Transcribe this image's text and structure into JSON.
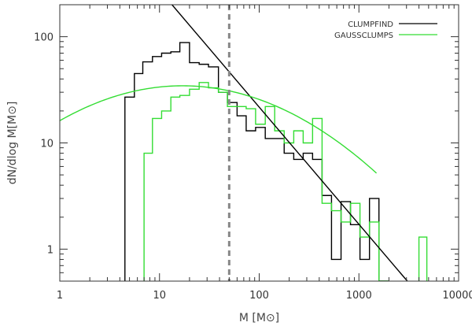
{
  "chart_data": {
    "type": "line",
    "xlabel": "M [M⊙]",
    "ylabel": "dN/dlog M[M⊙]",
    "xscale": "log",
    "yscale": "log",
    "xlim": [
      1,
      10000
    ],
    "ylim": [
      0.5,
      200
    ],
    "x_ticks": [
      1,
      10,
      100,
      1000,
      10000
    ],
    "x_tick_labels": [
      "1",
      "10",
      "100",
      "1000",
      "10000"
    ],
    "y_ticks": [
      1,
      10,
      100
    ],
    "y_tick_labels": [
      "1",
      "10",
      "100"
    ],
    "grid": false,
    "legend_position": "top-right",
    "series": [
      {
        "name": "CLUMPFIND",
        "kind": "step-histogram",
        "color": "#000000",
        "edges": [
          4.5,
          5.6,
          6.8,
          8.5,
          10.5,
          13,
          16,
          20,
          25,
          31,
          39,
          48,
          60,
          74,
          92,
          115,
          143,
          178,
          222,
          276,
          343,
          427,
          531,
          662,
          823,
          1025,
          1276,
          1588,
          1977
        ],
        "values": [
          27,
          45,
          58,
          65,
          70,
          72,
          88,
          57,
          55,
          52,
          30,
          24,
          18,
          13,
          14,
          11,
          11,
          8,
          7,
          8,
          7,
          3.2,
          0.8,
          2.8,
          1.7,
          0.8,
          3.0,
          0.5
        ]
      },
      {
        "name": "GAUSSCLUMPS",
        "kind": "step-histogram",
        "color": "#33dd33",
        "edges": [
          7,
          8.5,
          10.5,
          13,
          16,
          20,
          25,
          31,
          39,
          48,
          60,
          74,
          92,
          115,
          143,
          178,
          222,
          276,
          343,
          427,
          531,
          662,
          823,
          1025,
          1276,
          1588,
          1977
        ],
        "values": [
          8,
          17,
          20,
          27,
          28,
          32,
          37,
          33,
          30,
          22,
          22,
          21,
          15,
          22,
          13,
          10,
          13,
          10,
          17,
          2.7,
          2.3,
          1.8,
          2.7,
          1.3,
          1.8,
          0.5
        ]
      },
      {
        "name": "GAUSSCLUMPS",
        "kind": "small-bin",
        "color": "#33dd33",
        "edges": [
          4000,
          4800
        ],
        "values": [
          1.3
        ]
      },
      {
        "name": "CLUMPFIND",
        "kind": "power-law-fit",
        "color": "#000000",
        "x": [
          13.35,
          3060
        ],
        "y": [
          200,
          0.5
        ]
      },
      {
        "name": "GAUSSCLUMPS",
        "kind": "lognormal-fit",
        "color": "#33dd33",
        "peak_x": 17,
        "peak_y": 34.5,
        "width_dex": 1.0,
        "x_range": [
          1,
          1500
        ]
      }
    ],
    "vertical_line": {
      "x": 50,
      "style": "dashed",
      "color": "#888888"
    },
    "colors": {
      "clumpfind": "#000000",
      "gaussclumps": "#33dd33",
      "dashed_line": "#888888",
      "axes": "#333333"
    }
  }
}
